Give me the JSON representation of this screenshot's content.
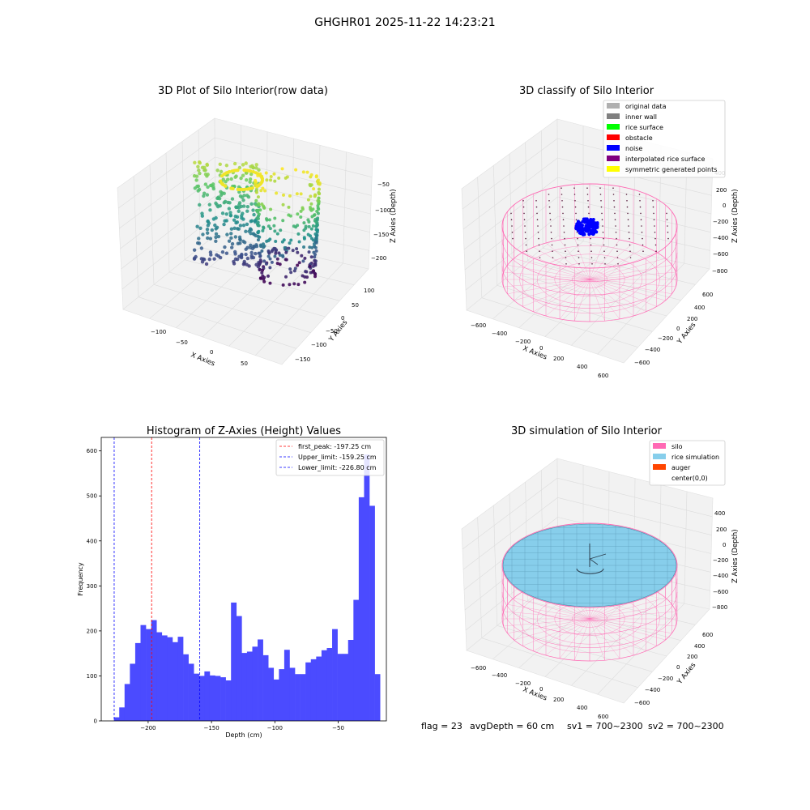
{
  "figure": {
    "suptitle": "GHGHR01 2025-11-22 14:23:21",
    "status": {
      "flag": "flag = 23",
      "avg_depth": "avgDepth = 60 cm",
      "sv1": "sv1 = 700~2300",
      "sv2": "sv2 = 700~2300"
    }
  },
  "colors": {
    "pane": "#f2f2f2",
    "grid": "#dcdcdc",
    "hist_bar": "#4b4bff",
    "silo": "#ff69b4",
    "rice": "#87ceeb",
    "auger": "#ff4500",
    "noise": "#0000ff"
  },
  "chart_data": [
    {
      "type": "scatter3d",
      "title": "3D Plot of Silo Interior(row data)",
      "xlabel": "X Axies",
      "ylabel": "Y Axies",
      "zlabel": "Z Axies (Depth)",
      "x_ticks": [
        "−100",
        "−50",
        "0",
        "50"
      ],
      "y_ticks": [
        "100",
        "50",
        "0",
        "−50",
        "−100",
        "−150"
      ],
      "z_ticks": [
        "−50",
        "−100",
        "−150",
        "−200"
      ],
      "colormap": "viridis"
    },
    {
      "type": "scatter3d",
      "title": "3D classify of Silo Interior",
      "xlabel": "X Axies",
      "ylabel": "Y Axies",
      "zlabel": "Z Axies (Depth)",
      "x_ticks": [
        "−600",
        "−400",
        "−200",
        "0",
        "200",
        "400",
        "600"
      ],
      "y_ticks": [
        "600",
        "400",
        "200",
        "0",
        "−200",
        "−400",
        "−600"
      ],
      "z_ticks": [
        "400",
        "200",
        "0",
        "−200",
        "−400",
        "−600",
        "−800"
      ],
      "legend_position": "top-right",
      "legend": [
        {
          "label": "original data",
          "color": "#b0b0b0"
        },
        {
          "label": "inner wall",
          "color": "#808080"
        },
        {
          "label": "rice surface",
          "color": "#00ff00"
        },
        {
          "label": "obstacle",
          "color": "#ff0000"
        },
        {
          "label": "noise",
          "color": "#0000ff"
        },
        {
          "label": "interpolated rice surface",
          "color": "#800080"
        },
        {
          "label": "symmetric generated points",
          "color": "#ffff00"
        }
      ]
    },
    {
      "type": "bar",
      "title": "Histogram of Z-Axies (Height) Values",
      "xlabel": "Depth (cm)",
      "ylabel": "Frequency",
      "xlim": [
        -237,
        -12
      ],
      "ylim": [
        0,
        630
      ],
      "x_ticks": [
        -200,
        -150,
        -100,
        -50
      ],
      "x_tick_labels": [
        "−200",
        "−150",
        "−100",
        "−50"
      ],
      "y_ticks": [
        0,
        100,
        200,
        300,
        400,
        500,
        600
      ],
      "bins_start": -227,
      "bin_width": 4.2,
      "values": [
        8,
        30,
        82,
        127,
        173,
        213,
        204,
        224,
        197,
        190,
        186,
        175,
        187,
        148,
        127,
        105,
        100,
        110,
        101,
        100,
        97,
        90,
        263,
        233,
        151,
        154,
        165,
        181,
        146,
        118,
        92,
        115,
        158,
        118,
        104,
        104,
        130,
        137,
        143,
        157,
        162,
        204,
        149,
        149,
        180,
        269,
        497,
        592,
        478,
        104
      ],
      "vlines": [
        {
          "x": -197.25,
          "color": "#ff0000",
          "label": "first_peak: -197.25 cm"
        },
        {
          "x": -159.25,
          "color": "#0000ff",
          "label": "Upper_limit: -159.25 cm"
        },
        {
          "x": -226.8,
          "color": "#0000ff",
          "label": "Lower_limit: -226.80 cm"
        }
      ],
      "legend_position": "top-right"
    },
    {
      "type": "surface3d",
      "title": "3D simulation of Silo Interior",
      "xlabel": "X Axies",
      "ylabel": "Y Axies",
      "zlabel": "Z Axies (Depth)",
      "x_ticks": [
        "−600",
        "−400",
        "−200",
        "0",
        "200",
        "400",
        "600"
      ],
      "y_ticks": [
        "600",
        "400",
        "200",
        "0",
        "−200",
        "−400",
        "−600"
      ],
      "z_ticks": [
        "400",
        "200",
        "0",
        "−200",
        "−400",
        "−600",
        "−800"
      ],
      "legend_position": "top-right",
      "legend": [
        {
          "label": "silo",
          "color": "#ff69b4"
        },
        {
          "label": "rice simulation",
          "color": "#87ceeb"
        },
        {
          "label": "auger",
          "color": "#ff4500"
        },
        {
          "label": "center(0,0)",
          "color": ""
        }
      ]
    }
  ]
}
